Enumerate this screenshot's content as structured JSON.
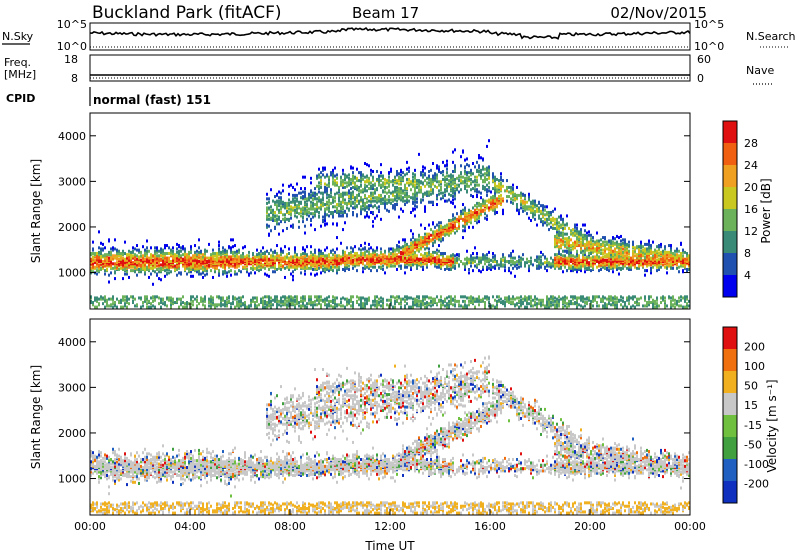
{
  "header": {
    "title": "Buckland Park (fitACF)",
    "beam": "Beam 17",
    "date": "02/Nov/2015"
  },
  "top_panels": {
    "nsky_label": "N.Sky",
    "nsky_ticks": [
      "10^5",
      "10^0"
    ],
    "nsearch_label": "N.Search",
    "nsearch_ticks": [
      "10^5",
      "10^0"
    ],
    "freq_label_1": "Freq.",
    "freq_label_2": "[MHz]",
    "freq_ticks": [
      "18",
      "8"
    ],
    "nave_label": "Nave",
    "nave_ticks": [
      "60",
      "0"
    ],
    "cpid_label": "CPID",
    "cpid_value": "normal (fast) 151"
  },
  "chart_data": [
    {
      "type": "heatmap",
      "ylabel": "Slant Range [km]",
      "ylim": [
        200,
        4500
      ],
      "yticks": [
        "4000",
        "3000",
        "2000",
        "1000"
      ],
      "colorbar_label": "Power [dB]",
      "colorbar_ticks": [
        "28",
        "24",
        "20",
        "16",
        "12",
        "8",
        "4"
      ],
      "colors": [
        "#0000ee",
        "#2050b0",
        "#3a8a78",
        "#6bb25a",
        "#c8c820",
        "#f0a020",
        "#f06010",
        "#e01010"
      ]
    },
    {
      "type": "heatmap",
      "ylabel": "Slant Range [km]",
      "ylim": [
        200,
        4500
      ],
      "yticks": [
        "4000",
        "3000",
        "2000",
        "1000"
      ],
      "xlabel": "Time UT",
      "xticks": [
        "00:00",
        "04:00",
        "08:00",
        "12:00",
        "16:00",
        "20:00",
        "00:00"
      ],
      "colorbar_label": "Velocity [m s⁻¹]",
      "colorbar_ticks": [
        "200",
        "100",
        "50",
        "15",
        "-15",
        "-50",
        "-100",
        "-200"
      ],
      "colors": [
        "#1030c0",
        "#2060c0",
        "#40a040",
        "#70c040",
        "#c8c8c8",
        "#f0b020",
        "#f07010",
        "#e01010"
      ]
    }
  ]
}
